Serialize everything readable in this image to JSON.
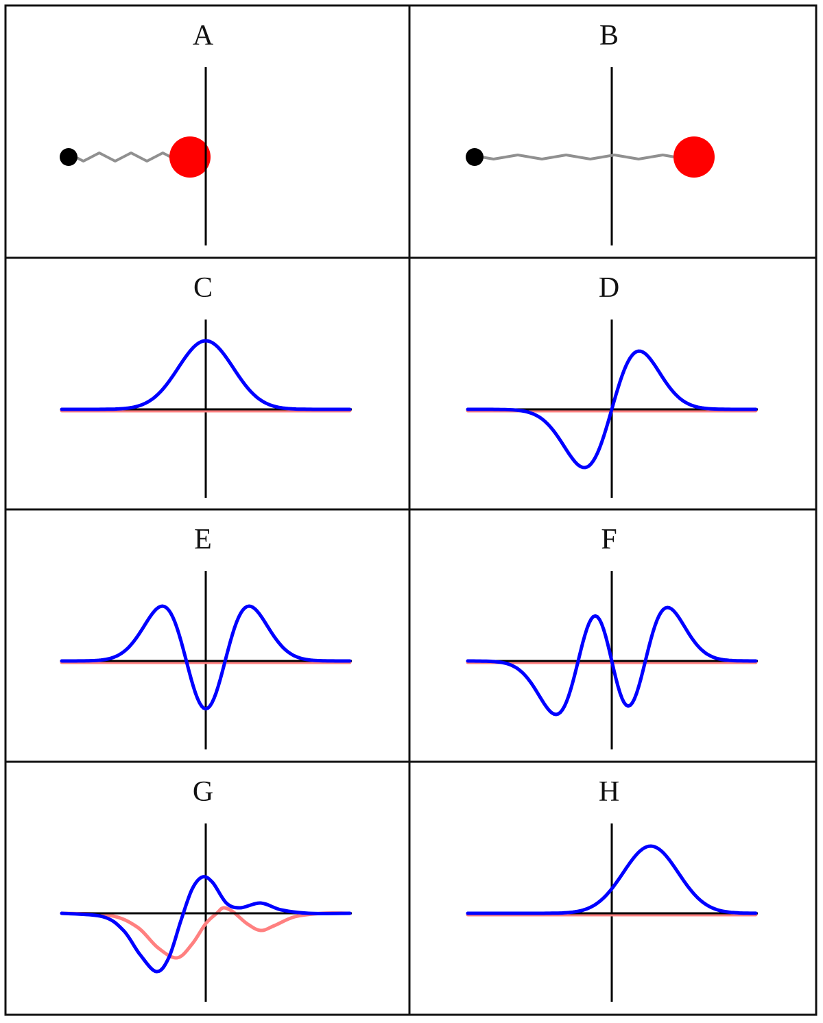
{
  "panels": [
    {
      "label": "A",
      "kind": "spring",
      "mass_position": -0.4
    },
    {
      "label": "B",
      "kind": "spring",
      "mass_position": 2.0
    },
    {
      "label": "C",
      "kind": "wave",
      "state": "psi0",
      "real_color": "#0000ff",
      "imag_color": "#ff8080"
    },
    {
      "label": "D",
      "kind": "wave",
      "state": "psi1",
      "real_color": "#0000ff",
      "imag_color": "#ff8080"
    },
    {
      "label": "E",
      "kind": "wave",
      "state": "psi2",
      "real_color": "#0000ff",
      "imag_color": "#ff8080"
    },
    {
      "label": "F",
      "kind": "wave",
      "state": "psi3",
      "real_color": "#0000ff",
      "imag_color": "#ff8080"
    },
    {
      "label": "G",
      "kind": "wave",
      "state": "superposition",
      "real_color": "#0000ff",
      "imag_color": "#ff8080",
      "real_points": [
        [
          -5.25,
          0
        ],
        [
          -3.75,
          -0.05
        ],
        [
          -3,
          -0.25
        ],
        [
          -2.4,
          -0.6
        ],
        [
          -1.8,
          -0.85
        ],
        [
          -1.35,
          -0.65
        ],
        [
          -0.9,
          -0.1
        ],
        [
          -0.5,
          0.35
        ],
        [
          -0.12,
          0.53
        ],
        [
          0.25,
          0.45
        ],
        [
          0.75,
          0.15
        ],
        [
          1.25,
          0.08
        ],
        [
          2,
          0.15
        ],
        [
          2.75,
          0.05
        ],
        [
          3.75,
          0
        ],
        [
          5.25,
          0
        ]
      ],
      "imag_points": [
        [
          -5.25,
          0
        ],
        [
          -3.5,
          -0.03
        ],
        [
          -2.5,
          -0.2
        ],
        [
          -1.75,
          -0.5
        ],
        [
          -1.05,
          -0.65
        ],
        [
          -0.5,
          -0.45
        ],
        [
          0,
          -0.15
        ],
        [
          0.4,
          0
        ],
        [
          0.65,
          0.08
        ],
        [
          1,
          0.02
        ],
        [
          1.5,
          -0.15
        ],
        [
          2,
          -0.25
        ],
        [
          2.5,
          -0.18
        ],
        [
          3.25,
          -0.05
        ],
        [
          4.25,
          0
        ],
        [
          5.25,
          0
        ]
      ]
    },
    {
      "label": "H",
      "kind": "wave",
      "state": "displaced-ground",
      "real_color": "#0000ff",
      "imag_color": "#ff8080"
    }
  ],
  "colors": {
    "mass": "#ff0000",
    "anchor": "#000000",
    "spring": "#909090",
    "axis": "#000000"
  }
}
